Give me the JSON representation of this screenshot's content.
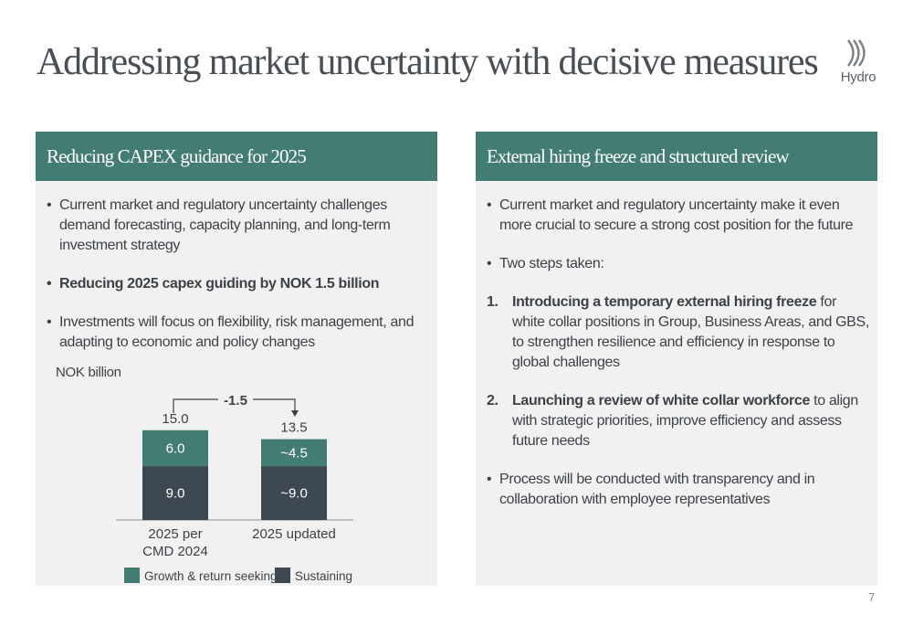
{
  "slide": {
    "title": "Addressing market uncertainty with decisive measures",
    "logo_text": "Hydro",
    "page_number": "7"
  },
  "left_panel": {
    "header": "Reducing CAPEX guidance for 2025",
    "bullets": [
      "Current market and regulatory uncertainty challenges demand forecasting, capacity planning, and long-term investment strategy",
      "Reducing 2025 capex guiding by NOK 1.5 billion",
      "Investments will focus on flexibility, risk management, and adapting to economic and policy changes"
    ]
  },
  "right_panel": {
    "header": "External hiring freeze and structured review",
    "bullet_1": "Current market and regulatory uncertainty make it even more crucial to secure a strong cost position for the future",
    "bullet_2": "Two steps taken:",
    "steps": [
      {
        "number": "1.",
        "bold": "Introducing a temporary external hiring freeze",
        "text": " for white collar positions in Group, Business Areas, and GBS, to strengthen resilience and efficiency in response to global challenges"
      },
      {
        "number": "2.",
        "bold": "Launching a review of white collar workforce",
        "text": " to align with strategic priorities, improve efficiency and assess future needs"
      }
    ],
    "bullet_3": "Process will be conducted with transparency and in collaboration with employee representatives"
  },
  "chart_data": {
    "type": "bar",
    "stacked": true,
    "unit_label": "NOK billion",
    "categories": [
      "2025 per\nCMD 2024",
      "2025 updated"
    ],
    "series": [
      {
        "name": "Sustaining",
        "values": [
          9.0,
          9.0
        ],
        "labels": [
          "9.0",
          "~9.0"
        ],
        "color": "#3e4852"
      },
      {
        "name": "Growth & return seeking",
        "values": [
          6.0,
          4.5
        ],
        "labels": [
          "6.0",
          "~4.5"
        ],
        "color": "#437c73"
      }
    ],
    "totals": [
      "15.0",
      "13.5"
    ],
    "change_label": "-1.5",
    "legend_order": [
      "Growth & return seeking",
      "Sustaining"
    ],
    "legend_position": "bottom"
  }
}
